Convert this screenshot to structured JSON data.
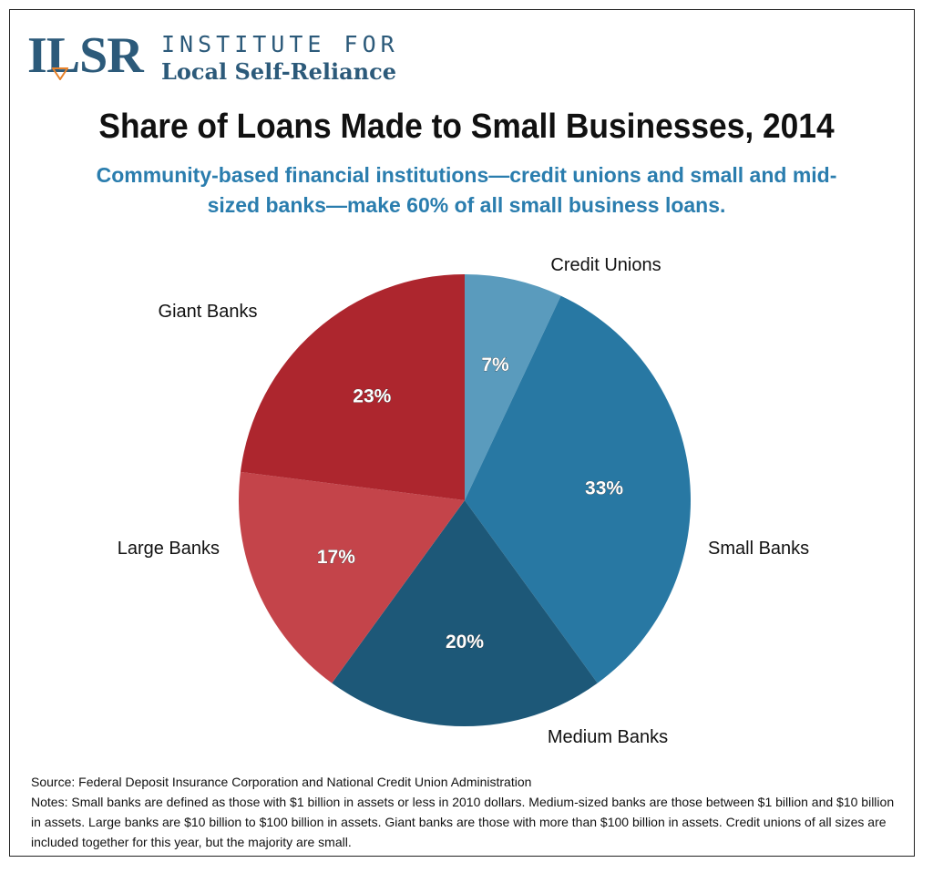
{
  "logo": {
    "mark": "ILSR",
    "line1": "INSTITUTE FOR",
    "line2": "Local Self-Reliance"
  },
  "colors": {
    "logo": "#2c5a7a",
    "subtitle": "#2a7dae"
  },
  "chart_data": {
    "type": "pie",
    "title": "Share of Loans Made to Small Businesses, 2014",
    "subtitle": "Community-based financial institutions—credit unions and small and mid-sized banks—make 60% of all small business loans.",
    "slices": [
      {
        "label": "Credit Unions",
        "value": 7,
        "display": "7%",
        "color": "#5a9bbd"
      },
      {
        "label": "Small Banks",
        "value": 33,
        "display": "33%",
        "color": "#2878a3"
      },
      {
        "label": "Medium Banks",
        "value": 20,
        "display": "20%",
        "color": "#1d5878"
      },
      {
        "label": "Large Banks",
        "value": 17,
        "display": "17%",
        "color": "#c4444a"
      },
      {
        "label": "Giant Banks",
        "value": 23,
        "display": "23%",
        "color": "#ad262e"
      }
    ],
    "start": "12 o'clock",
    "direction": "clockwise"
  },
  "footer": {
    "source": "Source: Federal Deposit Insurance Corporation and National Credit Union Administration",
    "notes": "Notes: Small banks are defined as those with $1 billion in assets or less in 2010 dollars.  Medium-sized banks are those between $1 billion and $10 billion in assets.  Large banks are $10 billion to $100 billion in assets.  Giant banks are those with more than $100 billion in assets.  Credit unions of all sizes are included together for this year, but the majority are small."
  }
}
